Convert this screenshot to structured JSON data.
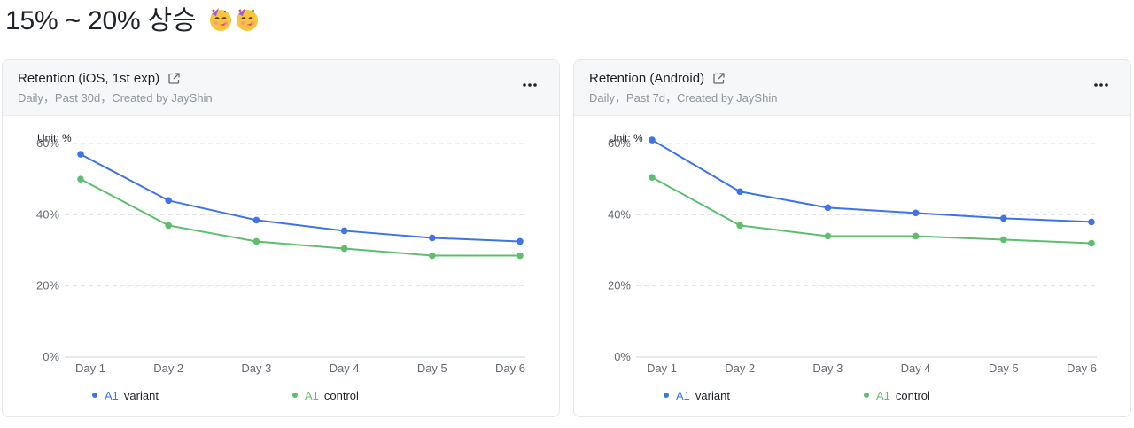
{
  "headline": "15% ~ 20% 상승",
  "colors": {
    "variant": "#3e74e6",
    "control": "#5dbf6e",
    "grid": "#dfe1e5",
    "axis_text": "#646a73"
  },
  "cards": [
    {
      "title": "Retention (iOS, 1st exp)",
      "subtitle": "Daily，Past 30d，Created by JayShin",
      "unit_label": "Unit: %",
      "legend": [
        {
          "tag": "A1",
          "name": "variant",
          "color": "#3e74e6"
        },
        {
          "tag": "A1",
          "name": "control",
          "color": "#5dbf6e"
        }
      ]
    },
    {
      "title": "Retention (Android)",
      "subtitle": "Daily，Past 7d，Created by JayShin",
      "unit_label": "Unit: %",
      "legend": [
        {
          "tag": "A1",
          "name": "variant",
          "color": "#3e74e6"
        },
        {
          "tag": "A1",
          "name": "control",
          "color": "#5dbf6e"
        }
      ]
    }
  ],
  "chart_data": [
    {
      "type": "line",
      "title": "Retention (iOS, 1st exp)",
      "ylabel": "Unit: %",
      "categories": [
        "Day 1",
        "Day 2",
        "Day 3",
        "Day 4",
        "Day 5",
        "Day 6"
      ],
      "yticks": [
        "0%",
        "20%",
        "40%",
        "60%"
      ],
      "ylim": [
        0,
        63
      ],
      "grid": true,
      "legend_position": "bottom-left",
      "series": [
        {
          "name": "A1 variant",
          "color": "#3e74e6",
          "values": [
            57,
            44,
            38.5,
            35.5,
            33.5,
            32.5
          ]
        },
        {
          "name": "A1 control",
          "color": "#5dbf6e",
          "values": [
            50,
            37,
            32.5,
            30.5,
            28.5,
            28.5
          ]
        }
      ]
    },
    {
      "type": "line",
      "title": "Retention (Android)",
      "ylabel": "Unit: %",
      "categories": [
        "Day 1",
        "Day 2",
        "Day 3",
        "Day 4",
        "Day 5",
        "Day 6"
      ],
      "yticks": [
        "0%",
        "20%",
        "40%",
        "60%"
      ],
      "ylim": [
        0,
        63
      ],
      "grid": true,
      "legend_position": "bottom-left",
      "series": [
        {
          "name": "A1 variant",
          "color": "#3e74e6",
          "values": [
            61,
            46.5,
            42,
            40.5,
            39,
            38
          ]
        },
        {
          "name": "A1 control",
          "color": "#5dbf6e",
          "values": [
            50.5,
            37,
            34,
            34,
            33,
            32
          ]
        }
      ]
    }
  ]
}
